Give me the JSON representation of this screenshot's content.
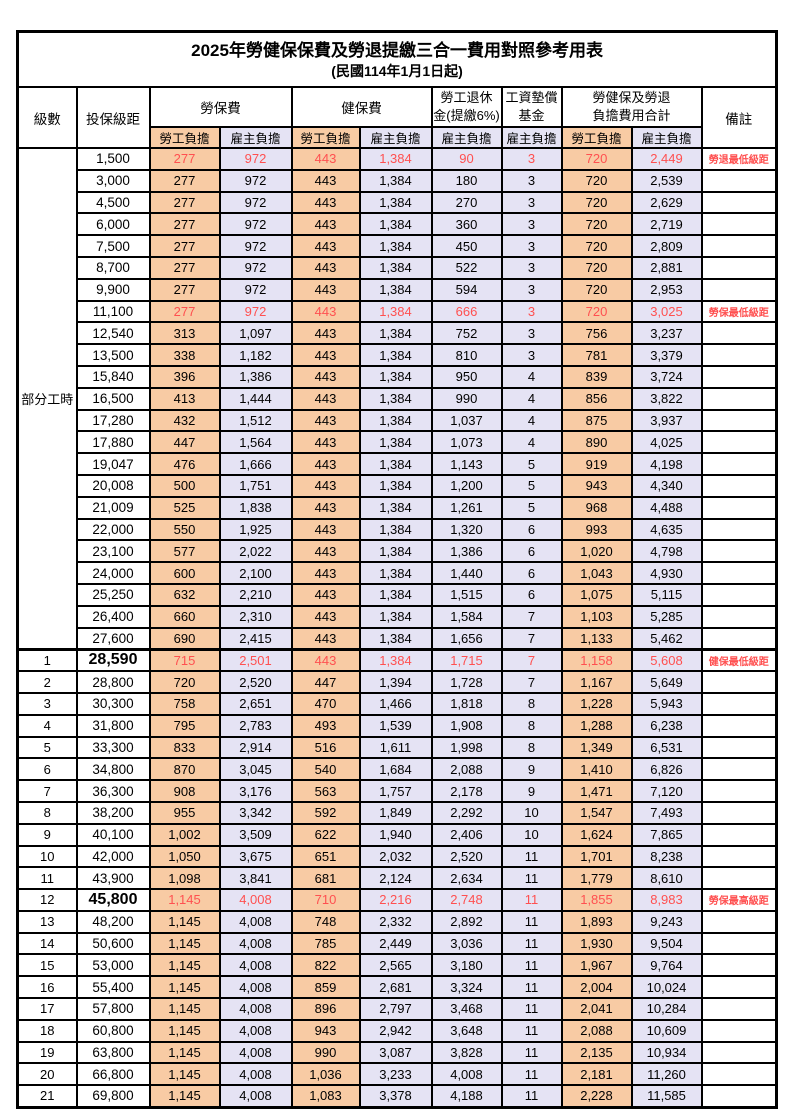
{
  "title": {
    "main": "2025年勞健保保費及勞退提繳三合一費用對照參考用表",
    "sub": "(民國114年1月1日起)"
  },
  "header": {
    "level": "級數",
    "bracket": "投保級距",
    "labor_insurance": "勞保費",
    "health_insurance": "健保費",
    "pension_l1": "勞工退休",
    "pension_l2": "金(提繳6%)",
    "wage_fund_l1": "工資墊償",
    "wage_fund_l2": "基金",
    "total_l1": "勞健保及勞退",
    "total_l2": "負擔費用合計",
    "remark": "備註",
    "employee_burden": "勞工負擔",
    "employer_burden": "雇主負擔"
  },
  "colors": {
    "employee_bg": "#F8CBA4",
    "employer_bg": "#E5E3F4",
    "highlight_red": "#FF5050"
  },
  "part_time": {
    "label": "部分工時",
    "span": 23
  },
  "rows": [
    {
      "level": null,
      "bracket": "1,500",
      "labor_emp": "277",
      "labor_er": "972",
      "health_emp": "443",
      "health_er": "1,384",
      "pension_er": "90",
      "wage_er": "3",
      "total_emp": "720",
      "total_er": "2,449",
      "remark": "勞退最低級距",
      "red": true,
      "big": false,
      "sep": false
    },
    {
      "level": null,
      "bracket": "3,000",
      "labor_emp": "277",
      "labor_er": "972",
      "health_emp": "443",
      "health_er": "1,384",
      "pension_er": "180",
      "wage_er": "3",
      "total_emp": "720",
      "total_er": "2,539",
      "remark": "",
      "red": false,
      "big": false,
      "sep": false
    },
    {
      "level": null,
      "bracket": "4,500",
      "labor_emp": "277",
      "labor_er": "972",
      "health_emp": "443",
      "health_er": "1,384",
      "pension_er": "270",
      "wage_er": "3",
      "total_emp": "720",
      "total_er": "2,629",
      "remark": "",
      "red": false,
      "big": false,
      "sep": false
    },
    {
      "level": null,
      "bracket": "6,000",
      "labor_emp": "277",
      "labor_er": "972",
      "health_emp": "443",
      "health_er": "1,384",
      "pension_er": "360",
      "wage_er": "3",
      "total_emp": "720",
      "total_er": "2,719",
      "remark": "",
      "red": false,
      "big": false,
      "sep": false
    },
    {
      "level": null,
      "bracket": "7,500",
      "labor_emp": "277",
      "labor_er": "972",
      "health_emp": "443",
      "health_er": "1,384",
      "pension_er": "450",
      "wage_er": "3",
      "total_emp": "720",
      "total_er": "2,809",
      "remark": "",
      "red": false,
      "big": false,
      "sep": false
    },
    {
      "level": null,
      "bracket": "8,700",
      "labor_emp": "277",
      "labor_er": "972",
      "health_emp": "443",
      "health_er": "1,384",
      "pension_er": "522",
      "wage_er": "3",
      "total_emp": "720",
      "total_er": "2,881",
      "remark": "",
      "red": false,
      "big": false,
      "sep": false
    },
    {
      "level": null,
      "bracket": "9,900",
      "labor_emp": "277",
      "labor_er": "972",
      "health_emp": "443",
      "health_er": "1,384",
      "pension_er": "594",
      "wage_er": "3",
      "total_emp": "720",
      "total_er": "2,953",
      "remark": "",
      "red": false,
      "big": false,
      "sep": false
    },
    {
      "level": null,
      "bracket": "11,100",
      "labor_emp": "277",
      "labor_er": "972",
      "health_emp": "443",
      "health_er": "1,384",
      "pension_er": "666",
      "wage_er": "3",
      "total_emp": "720",
      "total_er": "3,025",
      "remark": "勞保最低級距",
      "red": true,
      "big": false,
      "sep": false
    },
    {
      "level": null,
      "bracket": "12,540",
      "labor_emp": "313",
      "labor_er": "1,097",
      "health_emp": "443",
      "health_er": "1,384",
      "pension_er": "752",
      "wage_er": "3",
      "total_emp": "756",
      "total_er": "3,237",
      "remark": "",
      "red": false,
      "big": false,
      "sep": false
    },
    {
      "level": null,
      "bracket": "13,500",
      "labor_emp": "338",
      "labor_er": "1,182",
      "health_emp": "443",
      "health_er": "1,384",
      "pension_er": "810",
      "wage_er": "3",
      "total_emp": "781",
      "total_er": "3,379",
      "remark": "",
      "red": false,
      "big": false,
      "sep": false
    },
    {
      "level": null,
      "bracket": "15,840",
      "labor_emp": "396",
      "labor_er": "1,386",
      "health_emp": "443",
      "health_er": "1,384",
      "pension_er": "950",
      "wage_er": "4",
      "total_emp": "839",
      "total_er": "3,724",
      "remark": "",
      "red": false,
      "big": false,
      "sep": false
    },
    {
      "level": null,
      "bracket": "16,500",
      "labor_emp": "413",
      "labor_er": "1,444",
      "health_emp": "443",
      "health_er": "1,384",
      "pension_er": "990",
      "wage_er": "4",
      "total_emp": "856",
      "total_er": "3,822",
      "remark": "",
      "red": false,
      "big": false,
      "sep": false
    },
    {
      "level": null,
      "bracket": "17,280",
      "labor_emp": "432",
      "labor_er": "1,512",
      "health_emp": "443",
      "health_er": "1,384",
      "pension_er": "1,037",
      "wage_er": "4",
      "total_emp": "875",
      "total_er": "3,937",
      "remark": "",
      "red": false,
      "big": false,
      "sep": false
    },
    {
      "level": null,
      "bracket": "17,880",
      "labor_emp": "447",
      "labor_er": "1,564",
      "health_emp": "443",
      "health_er": "1,384",
      "pension_er": "1,073",
      "wage_er": "4",
      "total_emp": "890",
      "total_er": "4,025",
      "remark": "",
      "red": false,
      "big": false,
      "sep": false
    },
    {
      "level": null,
      "bracket": "19,047",
      "labor_emp": "476",
      "labor_er": "1,666",
      "health_emp": "443",
      "health_er": "1,384",
      "pension_er": "1,143",
      "wage_er": "5",
      "total_emp": "919",
      "total_er": "4,198",
      "remark": "",
      "red": false,
      "big": false,
      "sep": false
    },
    {
      "level": null,
      "bracket": "20,008",
      "labor_emp": "500",
      "labor_er": "1,751",
      "health_emp": "443",
      "health_er": "1,384",
      "pension_er": "1,200",
      "wage_er": "5",
      "total_emp": "943",
      "total_er": "4,340",
      "remark": "",
      "red": false,
      "big": false,
      "sep": false
    },
    {
      "level": null,
      "bracket": "21,009",
      "labor_emp": "525",
      "labor_er": "1,838",
      "health_emp": "443",
      "health_er": "1,384",
      "pension_er": "1,261",
      "wage_er": "5",
      "total_emp": "968",
      "total_er": "4,488",
      "remark": "",
      "red": false,
      "big": false,
      "sep": false
    },
    {
      "level": null,
      "bracket": "22,000",
      "labor_emp": "550",
      "labor_er": "1,925",
      "health_emp": "443",
      "health_er": "1,384",
      "pension_er": "1,320",
      "wage_er": "6",
      "total_emp": "993",
      "total_er": "4,635",
      "remark": "",
      "red": false,
      "big": false,
      "sep": false
    },
    {
      "level": null,
      "bracket": "23,100",
      "labor_emp": "577",
      "labor_er": "2,022",
      "health_emp": "443",
      "health_er": "1,384",
      "pension_er": "1,386",
      "wage_er": "6",
      "total_emp": "1,020",
      "total_er": "4,798",
      "remark": "",
      "red": false,
      "big": false,
      "sep": false
    },
    {
      "level": null,
      "bracket": "24,000",
      "labor_emp": "600",
      "labor_er": "2,100",
      "health_emp": "443",
      "health_er": "1,384",
      "pension_er": "1,440",
      "wage_er": "6",
      "total_emp": "1,043",
      "total_er": "4,930",
      "remark": "",
      "red": false,
      "big": false,
      "sep": false
    },
    {
      "level": null,
      "bracket": "25,250",
      "labor_emp": "632",
      "labor_er": "2,210",
      "health_emp": "443",
      "health_er": "1,384",
      "pension_er": "1,515",
      "wage_er": "6",
      "total_emp": "1,075",
      "total_er": "5,115",
      "remark": "",
      "red": false,
      "big": false,
      "sep": false
    },
    {
      "level": null,
      "bracket": "26,400",
      "labor_emp": "660",
      "labor_er": "2,310",
      "health_emp": "443",
      "health_er": "1,384",
      "pension_er": "1,584",
      "wage_er": "7",
      "total_emp": "1,103",
      "total_er": "5,285",
      "remark": "",
      "red": false,
      "big": false,
      "sep": false
    },
    {
      "level": null,
      "bracket": "27,600",
      "labor_emp": "690",
      "labor_er": "2,415",
      "health_emp": "443",
      "health_er": "1,384",
      "pension_er": "1,656",
      "wage_er": "7",
      "total_emp": "1,133",
      "total_er": "5,462",
      "remark": "",
      "red": false,
      "big": false,
      "sep": false
    },
    {
      "level": "1",
      "bracket": "28,590",
      "labor_emp": "715",
      "labor_er": "2,501",
      "health_emp": "443",
      "health_er": "1,384",
      "pension_er": "1,715",
      "wage_er": "7",
      "total_emp": "1,158",
      "total_er": "5,608",
      "remark": "健保最低級距",
      "red": true,
      "big": true,
      "sep": true
    },
    {
      "level": "2",
      "bracket": "28,800",
      "labor_emp": "720",
      "labor_er": "2,520",
      "health_emp": "447",
      "health_er": "1,394",
      "pension_er": "1,728",
      "wage_er": "7",
      "total_emp": "1,167",
      "total_er": "5,649",
      "remark": "",
      "red": false,
      "big": false,
      "sep": false
    },
    {
      "level": "3",
      "bracket": "30,300",
      "labor_emp": "758",
      "labor_er": "2,651",
      "health_emp": "470",
      "health_er": "1,466",
      "pension_er": "1,818",
      "wage_er": "8",
      "total_emp": "1,228",
      "total_er": "5,943",
      "remark": "",
      "red": false,
      "big": false,
      "sep": false
    },
    {
      "level": "4",
      "bracket": "31,800",
      "labor_emp": "795",
      "labor_er": "2,783",
      "health_emp": "493",
      "health_er": "1,539",
      "pension_er": "1,908",
      "wage_er": "8",
      "total_emp": "1,288",
      "total_er": "6,238",
      "remark": "",
      "red": false,
      "big": false,
      "sep": false
    },
    {
      "level": "5",
      "bracket": "33,300",
      "labor_emp": "833",
      "labor_er": "2,914",
      "health_emp": "516",
      "health_er": "1,611",
      "pension_er": "1,998",
      "wage_er": "8",
      "total_emp": "1,349",
      "total_er": "6,531",
      "remark": "",
      "red": false,
      "big": false,
      "sep": false
    },
    {
      "level": "6",
      "bracket": "34,800",
      "labor_emp": "870",
      "labor_er": "3,045",
      "health_emp": "540",
      "health_er": "1,684",
      "pension_er": "2,088",
      "wage_er": "9",
      "total_emp": "1,410",
      "total_er": "6,826",
      "remark": "",
      "red": false,
      "big": false,
      "sep": false
    },
    {
      "level": "7",
      "bracket": "36,300",
      "labor_emp": "908",
      "labor_er": "3,176",
      "health_emp": "563",
      "health_er": "1,757",
      "pension_er": "2,178",
      "wage_er": "9",
      "total_emp": "1,471",
      "total_er": "7,120",
      "remark": "",
      "red": false,
      "big": false,
      "sep": false
    },
    {
      "level": "8",
      "bracket": "38,200",
      "labor_emp": "955",
      "labor_er": "3,342",
      "health_emp": "592",
      "health_er": "1,849",
      "pension_er": "2,292",
      "wage_er": "10",
      "total_emp": "1,547",
      "total_er": "7,493",
      "remark": "",
      "red": false,
      "big": false,
      "sep": false
    },
    {
      "level": "9",
      "bracket": "40,100",
      "labor_emp": "1,002",
      "labor_er": "3,509",
      "health_emp": "622",
      "health_er": "1,940",
      "pension_er": "2,406",
      "wage_er": "10",
      "total_emp": "1,624",
      "total_er": "7,865",
      "remark": "",
      "red": false,
      "big": false,
      "sep": false
    },
    {
      "level": "10",
      "bracket": "42,000",
      "labor_emp": "1,050",
      "labor_er": "3,675",
      "health_emp": "651",
      "health_er": "2,032",
      "pension_er": "2,520",
      "wage_er": "11",
      "total_emp": "1,701",
      "total_er": "8,238",
      "remark": "",
      "red": false,
      "big": false,
      "sep": false
    },
    {
      "level": "11",
      "bracket": "43,900",
      "labor_emp": "1,098",
      "labor_er": "3,841",
      "health_emp": "681",
      "health_er": "2,124",
      "pension_er": "2,634",
      "wage_er": "11",
      "total_emp": "1,779",
      "total_er": "8,610",
      "remark": "",
      "red": false,
      "big": false,
      "sep": false
    },
    {
      "level": "12",
      "bracket": "45,800",
      "labor_emp": "1,145",
      "labor_er": "4,008",
      "health_emp": "710",
      "health_er": "2,216",
      "pension_er": "2,748",
      "wage_er": "11",
      "total_emp": "1,855",
      "total_er": "8,983",
      "remark": "勞保最高級距",
      "red": true,
      "big": true,
      "sep": false
    },
    {
      "level": "13",
      "bracket": "48,200",
      "labor_emp": "1,145",
      "labor_er": "4,008",
      "health_emp": "748",
      "health_er": "2,332",
      "pension_er": "2,892",
      "wage_er": "11",
      "total_emp": "1,893",
      "total_er": "9,243",
      "remark": "",
      "red": false,
      "big": false,
      "sep": false
    },
    {
      "level": "14",
      "bracket": "50,600",
      "labor_emp": "1,145",
      "labor_er": "4,008",
      "health_emp": "785",
      "health_er": "2,449",
      "pension_er": "3,036",
      "wage_er": "11",
      "total_emp": "1,930",
      "total_er": "9,504",
      "remark": "",
      "red": false,
      "big": false,
      "sep": false
    },
    {
      "level": "15",
      "bracket": "53,000",
      "labor_emp": "1,145",
      "labor_er": "4,008",
      "health_emp": "822",
      "health_er": "2,565",
      "pension_er": "3,180",
      "wage_er": "11",
      "total_emp": "1,967",
      "total_er": "9,764",
      "remark": "",
      "red": false,
      "big": false,
      "sep": false
    },
    {
      "level": "16",
      "bracket": "55,400",
      "labor_emp": "1,145",
      "labor_er": "4,008",
      "health_emp": "859",
      "health_er": "2,681",
      "pension_er": "3,324",
      "wage_er": "11",
      "total_emp": "2,004",
      "total_er": "10,024",
      "remark": "",
      "red": false,
      "big": false,
      "sep": false
    },
    {
      "level": "17",
      "bracket": "57,800",
      "labor_emp": "1,145",
      "labor_er": "4,008",
      "health_emp": "896",
      "health_er": "2,797",
      "pension_er": "3,468",
      "wage_er": "11",
      "total_emp": "2,041",
      "total_er": "10,284",
      "remark": "",
      "red": false,
      "big": false,
      "sep": false
    },
    {
      "level": "18",
      "bracket": "60,800",
      "labor_emp": "1,145",
      "labor_er": "4,008",
      "health_emp": "943",
      "health_er": "2,942",
      "pension_er": "3,648",
      "wage_er": "11",
      "total_emp": "2,088",
      "total_er": "10,609",
      "remark": "",
      "red": false,
      "big": false,
      "sep": false
    },
    {
      "level": "19",
      "bracket": "63,800",
      "labor_emp": "1,145",
      "labor_er": "4,008",
      "health_emp": "990",
      "health_er": "3,087",
      "pension_er": "3,828",
      "wage_er": "11",
      "total_emp": "2,135",
      "total_er": "10,934",
      "remark": "",
      "red": false,
      "big": false,
      "sep": false
    },
    {
      "level": "20",
      "bracket": "66,800",
      "labor_emp": "1,145",
      "labor_er": "4,008",
      "health_emp": "1,036",
      "health_er": "3,233",
      "pension_er": "4,008",
      "wage_er": "11",
      "total_emp": "2,181",
      "total_er": "11,260",
      "remark": "",
      "red": false,
      "big": false,
      "sep": false
    },
    {
      "level": "21",
      "bracket": "69,800",
      "labor_emp": "1,145",
      "labor_er": "4,008",
      "health_emp": "1,083",
      "health_er": "3,378",
      "pension_er": "4,188",
      "wage_er": "11",
      "total_emp": "2,228",
      "total_er": "11,585",
      "remark": "",
      "red": false,
      "big": false,
      "sep": false
    }
  ]
}
